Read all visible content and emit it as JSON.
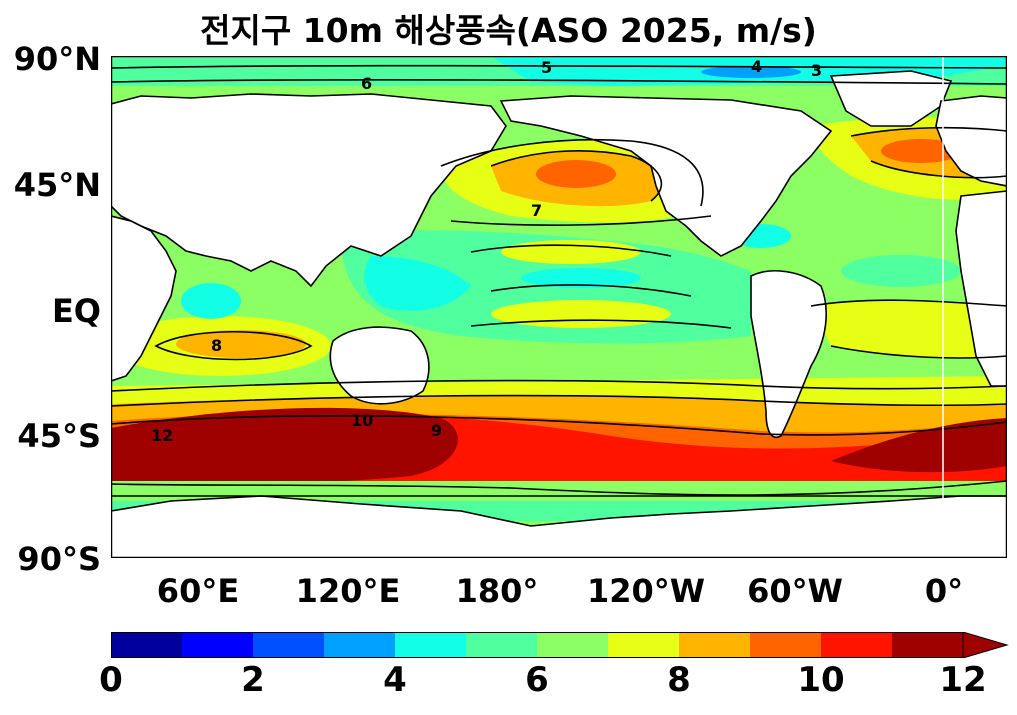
{
  "title": "전지구 10m 해상풍속(ASO 2025, m/s)",
  "y_axis": {
    "ticks": [
      "90°N",
      "45°N",
      "EQ",
      "45°S",
      "90°S"
    ]
  },
  "x_axis": {
    "ticks": [
      "60°E",
      "120°E",
      "180°",
      "120°W",
      "60°W",
      "0°"
    ]
  },
  "colorbar": {
    "ticks": [
      "0",
      "2",
      "4",
      "6",
      "8",
      "10",
      "12"
    ],
    "colors": [
      "#00009f",
      "#0000ff",
      "#0050ff",
      "#00a0ff",
      "#12ffe6",
      "#50ff9e",
      "#8cff64",
      "#e6ff14",
      "#ffb400",
      "#ff6400",
      "#ff1400",
      "#9f0000"
    ],
    "extend": "max"
  },
  "contour_labels": [
    "5",
    "4",
    "3",
    "6",
    "7",
    "8",
    "9",
    "10",
    "12"
  ]
}
